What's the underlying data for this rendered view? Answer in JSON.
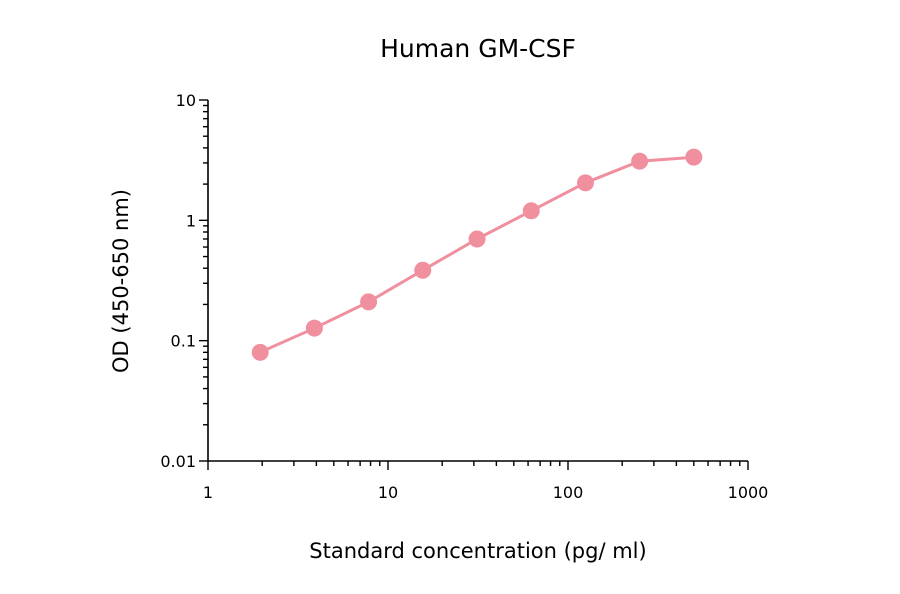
{
  "chart_data": {
    "type": "line",
    "title": "Human GM-CSF",
    "xlabel": "Standard concentration (pg/ ml)",
    "ylabel": "OD (450-650 nm)",
    "xscale": "log",
    "yscale": "log",
    "xlim": [
      1,
      1000
    ],
    "ylim": [
      0.01,
      10
    ],
    "xticks": [
      {
        "value": 1,
        "label": "1"
      },
      {
        "value": 10,
        "label": "10"
      },
      {
        "value": 100,
        "label": "100"
      },
      {
        "value": 1000,
        "label": "1000"
      }
    ],
    "yticks": [
      {
        "value": 0.01,
        "label": "0.01"
      },
      {
        "value": 0.1,
        "label": "0.1"
      },
      {
        "value": 1,
        "label": "1"
      },
      {
        "value": 10,
        "label": "10"
      }
    ],
    "grid": false,
    "color": "#f0909f",
    "series": [
      {
        "x": [
          1.95,
          3.9,
          7.8,
          15.6,
          31.25,
          62.5,
          125,
          250,
          500
        ],
        "y": [
          0.08,
          0.127,
          0.21,
          0.385,
          0.7,
          1.2,
          2.05,
          3.1,
          3.35
        ]
      }
    ]
  }
}
